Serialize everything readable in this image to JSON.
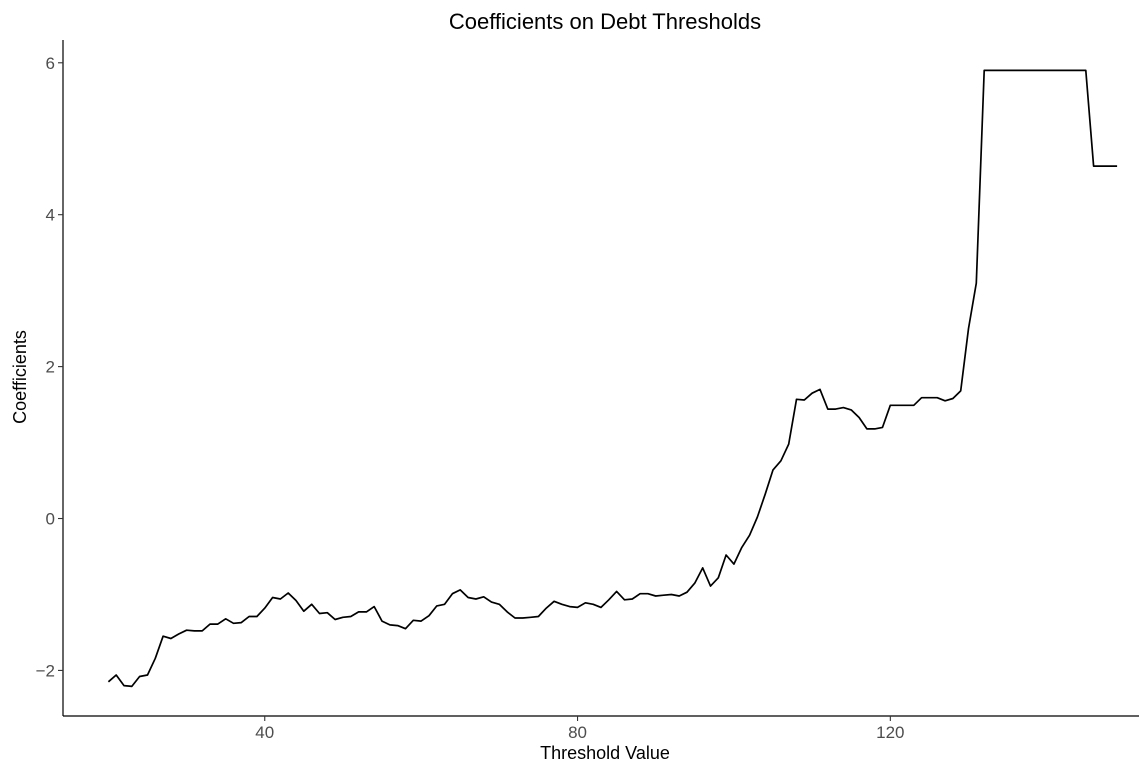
{
  "chart_data": {
    "type": "line",
    "title": "Coefficients on Debt Thresholds",
    "xlabel": "Threshold Value",
    "ylabel": "Coefficients",
    "xlim": [
      14.2,
      151.8
    ],
    "ylim": [
      -2.6,
      6.3
    ],
    "xticks": [
      40,
      80,
      120
    ],
    "yticks": [
      -2,
      0,
      2,
      4,
      6
    ],
    "grid": false,
    "legend": "none",
    "line_color": "#000000",
    "series": [
      {
        "x": [
          20,
          21,
          22,
          23,
          24,
          25,
          26,
          27,
          28,
          29,
          30,
          31,
          32,
          33,
          34,
          35,
          36,
          37,
          38,
          39,
          40,
          41,
          42,
          43,
          44,
          45,
          46,
          47,
          48,
          49,
          50,
          51,
          52,
          53,
          54,
          55,
          56,
          57,
          58,
          59,
          60,
          61,
          62,
          63,
          64,
          65,
          66,
          67,
          68,
          69,
          70,
          71,
          72,
          73,
          74,
          75,
          76,
          77,
          78,
          79,
          80,
          81,
          82,
          83,
          84,
          85,
          86,
          87,
          88,
          89,
          90,
          91,
          92,
          93,
          94,
          95,
          96,
          97,
          98,
          99,
          100,
          101,
          102,
          103,
          104,
          105,
          106,
          107,
          108,
          109,
          110,
          111,
          112,
          113,
          114,
          115,
          116,
          117,
          118,
          119,
          120,
          121,
          122,
          123,
          124,
          125,
          126,
          127,
          128,
          129,
          130,
          131,
          132,
          133,
          134,
          135,
          136,
          137,
          138,
          139,
          140,
          141,
          142,
          143,
          144,
          145,
          146,
          147,
          148,
          149
        ],
        "y": [
          -2.15,
          -2.06,
          -2.2,
          -2.21,
          -2.08,
          -2.06,
          -1.84,
          -1.55,
          -1.58,
          -1.52,
          -1.47,
          -1.48,
          -1.48,
          -1.39,
          -1.39,
          -1.32,
          -1.38,
          -1.37,
          -1.29,
          -1.29,
          -1.18,
          -1.04,
          -1.06,
          -0.98,
          -1.08,
          -1.22,
          -1.13,
          -1.25,
          -1.24,
          -1.33,
          -1.3,
          -1.29,
          -1.23,
          -1.23,
          -1.16,
          -1.35,
          -1.4,
          -1.41,
          -1.45,
          -1.34,
          -1.35,
          -1.28,
          -1.15,
          -1.13,
          -0.99,
          -0.94,
          -1.04,
          -1.06,
          -1.03,
          -1.1,
          -1.13,
          -1.23,
          -1.31,
          -1.31,
          -1.3,
          -1.29,
          -1.18,
          -1.09,
          -1.13,
          -1.16,
          -1.17,
          -1.11,
          -1.13,
          -1.17,
          -1.07,
          -0.96,
          -1.07,
          -1.06,
          -0.99,
          -0.99,
          -1.02,
          -1.01,
          -1.0,
          -1.02,
          -0.97,
          -0.85,
          -0.65,
          -0.89,
          -0.78,
          -0.48,
          -0.6,
          -0.38,
          -0.22,
          0.02,
          0.32,
          0.64,
          0.76,
          0.98,
          1.57,
          1.56,
          1.65,
          1.7,
          1.44,
          1.44,
          1.46,
          1.43,
          1.33,
          1.18,
          1.18,
          1.2,
          1.49,
          1.49,
          1.49,
          1.49,
          1.59,
          1.59,
          1.59,
          1.55,
          1.58,
          1.68,
          2.5,
          3.1,
          5.9,
          5.9,
          5.9,
          5.9,
          5.9,
          5.9,
          5.9,
          5.9,
          5.9,
          5.9,
          5.9,
          5.9,
          5.9,
          5.9,
          4.64,
          4.64,
          4.64,
          4.64
        ]
      }
    ]
  }
}
